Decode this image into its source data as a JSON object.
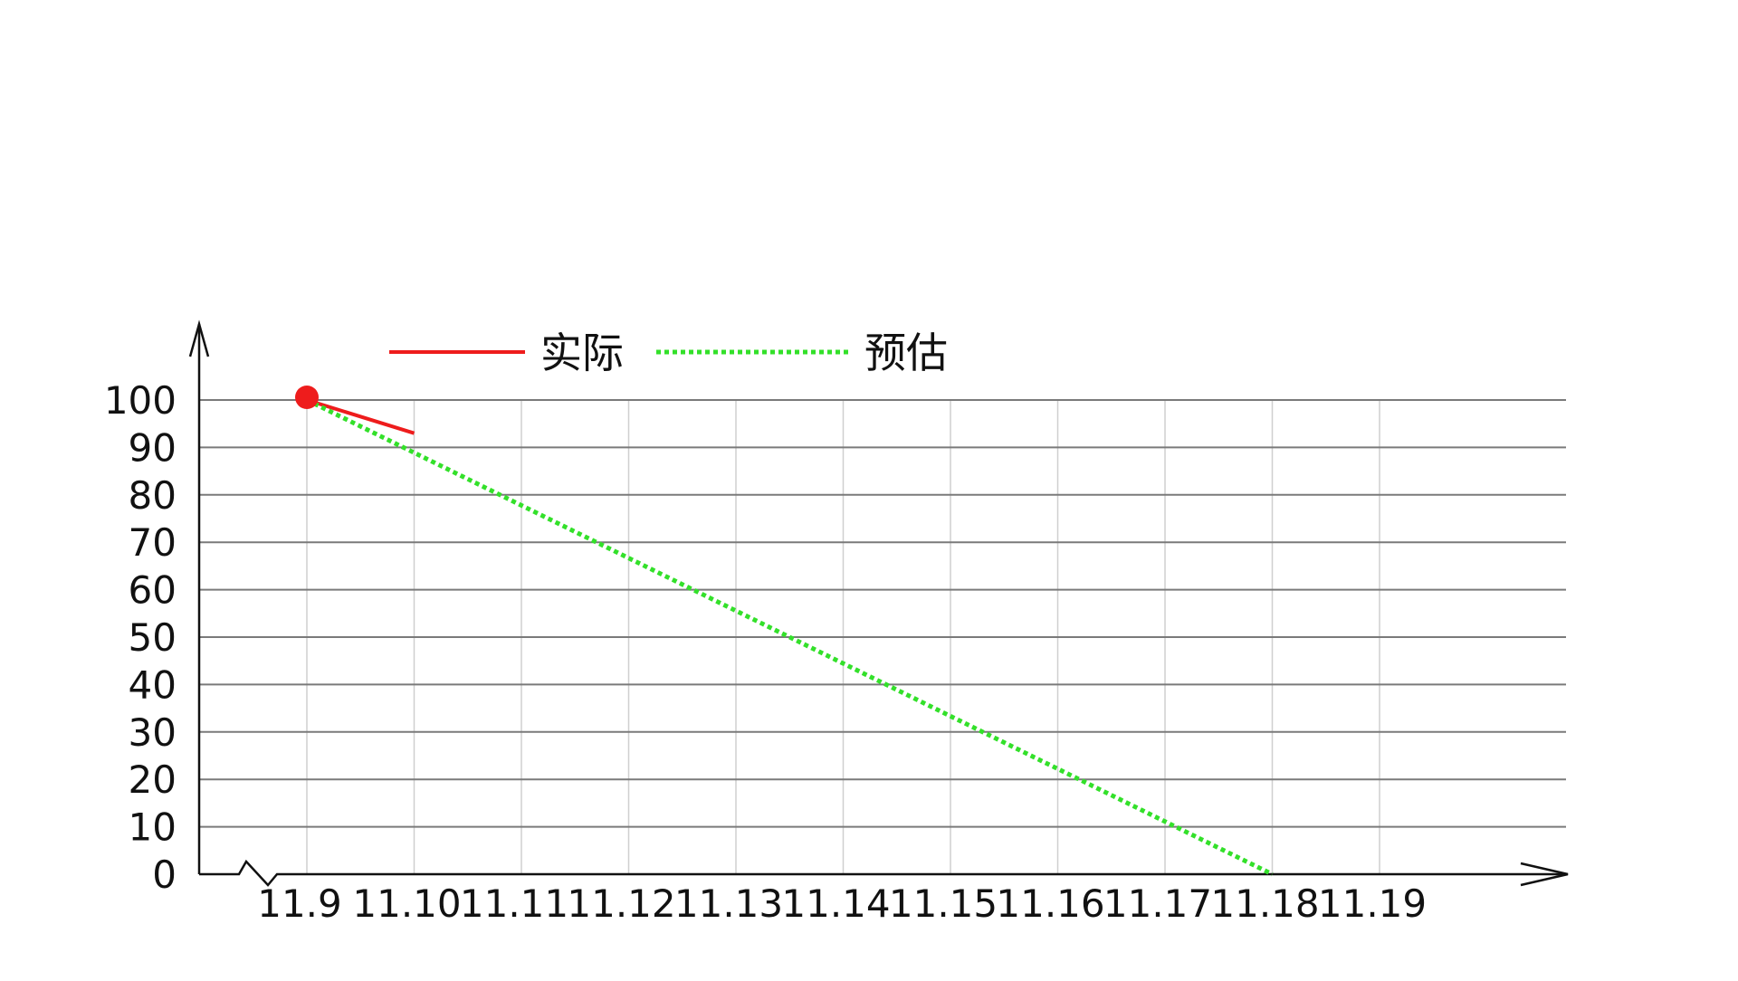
{
  "chart_data": {
    "type": "line",
    "x": [
      "11.9",
      "11.10",
      "11.11",
      "11.12",
      "11.13",
      "11.14",
      "11.15",
      "11.16",
      "11.17",
      "11.18",
      "11.19"
    ],
    "yticks": [
      "0",
      "10",
      "20",
      "30",
      "40",
      "50",
      "60",
      "70",
      "80",
      "90",
      "100"
    ],
    "ylim": [
      0,
      100
    ],
    "grid": true,
    "legend_position": "top",
    "series": [
      {
        "name": "实际",
        "color": "#ee1c1c",
        "style": "solid",
        "x": [
          "11.9",
          "11.10"
        ],
        "values": [
          100,
          93
        ]
      },
      {
        "name": "预估",
        "color": "#33e02a",
        "style": "dotted",
        "x": [
          "11.9",
          "11.18"
        ],
        "values": [
          100,
          0
        ]
      }
    ],
    "marker": {
      "x": "11.9",
      "value": 100,
      "color": "#ee1c1c"
    }
  }
}
